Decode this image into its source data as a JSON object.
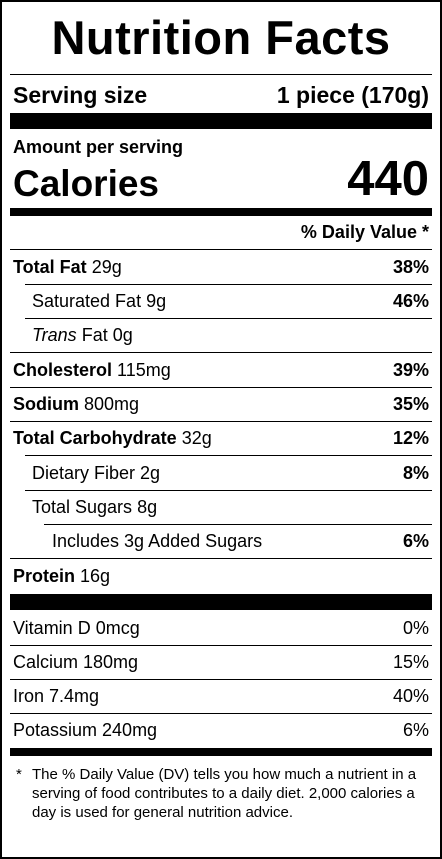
{
  "title": "Nutrition Facts",
  "serving": {
    "label": "Serving size",
    "value": "1 piece (170g)"
  },
  "amount_per_serving": "Amount per serving",
  "calories": {
    "label": "Calories",
    "value": "440"
  },
  "dv_header": "% Daily Value *",
  "nutrients": {
    "total_fat": {
      "name": "Total Fat",
      "amount": "29g",
      "dv": "38%"
    },
    "saturated_fat": {
      "name": "Saturated Fat",
      "amount": "9g",
      "dv": "46%"
    },
    "trans_fat": {
      "name_italic": "Trans",
      "name": "Fat",
      "amount": "0g"
    },
    "cholesterol": {
      "name": "Cholesterol",
      "amount": "115mg",
      "dv": "39%"
    },
    "sodium": {
      "name": "Sodium",
      "amount": "800mg",
      "dv": "35%"
    },
    "total_carbohydrate": {
      "name": "Total Carbohydrate",
      "amount": "32g",
      "dv": "12%"
    },
    "dietary_fiber": {
      "name": "Dietary Fiber",
      "amount": "2g",
      "dv": "8%"
    },
    "total_sugars": {
      "name": "Total Sugars",
      "amount": "8g"
    },
    "added_sugars": {
      "text": "Includes 3g Added Sugars",
      "dv": "6%"
    },
    "protein": {
      "name": "Protein",
      "amount": "16g"
    }
  },
  "vitamins": [
    {
      "name": "Vitamin D 0mcg",
      "dv": "0%"
    },
    {
      "name": "Calcium 180mg",
      "dv": "15%"
    },
    {
      "name": "Iron 7.4mg",
      "dv": "40%"
    },
    {
      "name": "Potassium 240mg",
      "dv": "6%"
    }
  ],
  "footnote": {
    "star": "*",
    "text": "The % Daily Value (DV) tells you how much a nutrient in a serving of food contributes to a daily diet. 2,000 calories a day is used for general nutrition advice."
  }
}
